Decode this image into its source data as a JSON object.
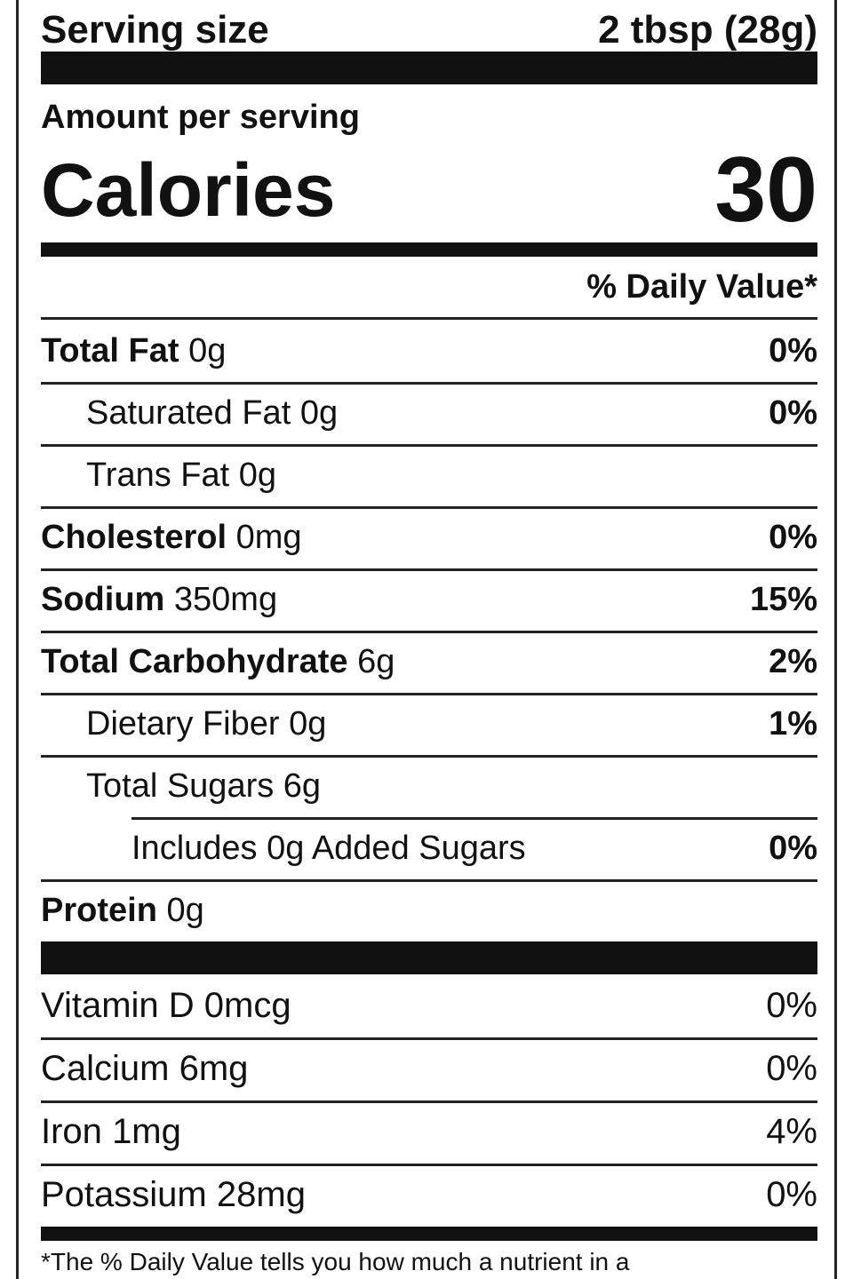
{
  "header": {
    "serving_label": "Serving size",
    "serving_value": "2 tbsp (28g)",
    "amount_per_serving": "Amount per serving",
    "calories_label": "Calories",
    "calories_value": "30",
    "daily_value_header": "% Daily Value*"
  },
  "nutrients": [
    {
      "name": "Total Fat",
      "amount": "0g",
      "dv": "0%",
      "bold": true,
      "indent": 0
    },
    {
      "name": "Saturated Fat",
      "amount": "0g",
      "dv": "0%",
      "bold": false,
      "indent": 1
    },
    {
      "name": "Trans Fat",
      "amount": "0g",
      "bold": false,
      "indent": 1
    },
    {
      "name": "Cholesterol",
      "amount": "0mg",
      "dv": "0%",
      "bold": true,
      "indent": 0
    },
    {
      "name": "Sodium",
      "amount": "350mg",
      "dv": "15%",
      "bold": true,
      "indent": 0
    },
    {
      "name": "Total Carbohydrate",
      "amount": "6g",
      "dv": "2%",
      "bold": true,
      "indent": 0
    },
    {
      "name": "Dietary Fiber",
      "amount": "0g",
      "dv": "1%",
      "bold": false,
      "indent": 1
    },
    {
      "name": "Total Sugars",
      "amount": "6g",
      "bold": false,
      "indent": 1
    },
    {
      "name": "Includes 0g Added Sugars",
      "dv": "0%",
      "bold": false,
      "indent": 2
    },
    {
      "name": "Protein",
      "amount": "0g",
      "bold": true,
      "indent": 0
    }
  ],
  "vitamins_minerals": [
    {
      "name": "Vitamin D",
      "amount": "0mcg",
      "dv": "0%"
    },
    {
      "name": "Calcium",
      "amount": "6mg",
      "dv": "0%"
    },
    {
      "name": "Iron",
      "amount": "1mg",
      "dv": "4%"
    },
    {
      "name": "Potassium",
      "amount": "28mg",
      "dv": "0%"
    }
  ],
  "footnote": "*The % Daily Value tells you how much a nutrient in a"
}
